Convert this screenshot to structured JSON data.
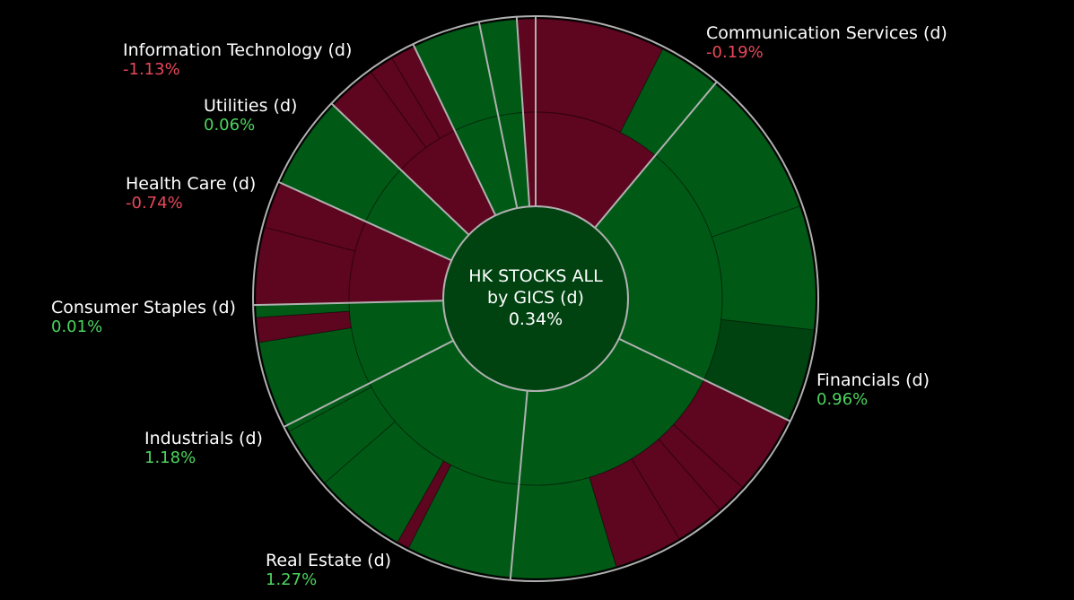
{
  "colors": {
    "background": "#000000",
    "positive_strong": "#005a16",
    "positive_dark": "#004311",
    "negative": "#5e0520",
    "positive_text": "#4cd45e",
    "negative_text": "#e8475a",
    "separator": "#b0b0b0"
  },
  "chart_data": {
    "type": "sunburst",
    "center": {
      "line1": "HK STOCKS ALL",
      "line2": "by GICS (d)",
      "value": "0.34%",
      "sign": 1
    },
    "sectors": [
      {
        "name": "Communication Services (d)",
        "change": "-0.19%",
        "sign": -1,
        "weight": 31,
        "segments": [
          {
            "weight": 21.0,
            "sign": -1
          },
          {
            "weight": 10.0,
            "sign": 1
          }
        ]
      },
      {
        "name": "Financials (d)",
        "change": "0.96%",
        "sign": 1,
        "weight": 59,
        "segments": [
          {
            "weight": 24.0,
            "sign": 1
          },
          {
            "weight": 20.0,
            "sign": 1
          },
          {
            "weight": 15.0,
            "sign": 1,
            "dark": true
          }
        ]
      },
      {
        "name": "Real Estate (d)",
        "change": "1.27%",
        "sign": 1,
        "weight": 54,
        "segments": [
          {
            "weight": 13.0,
            "sign": -1
          },
          {
            "weight": 5.0,
            "sign": -1
          },
          {
            "weight": 8.0,
            "sign": -1
          },
          {
            "weight": 11.0,
            "sign": -1
          },
          {
            "weight": 17.0,
            "sign": 1
          }
        ]
      },
      {
        "name": "Industrials (d)",
        "change": "1.18%",
        "sign": 1,
        "weight": 45,
        "segments": [
          {
            "weight": 17.0,
            "sign": 1
          },
          {
            "weight": 2.0,
            "sign": -1
          },
          {
            "weight": 15.0,
            "sign": 1
          },
          {
            "weight": 10.0,
            "sign": 1
          },
          {
            "weight": 1.0,
            "sign": 1
          }
        ]
      },
      {
        "name": "Consumer Staples (d)",
        "change": "0.01%",
        "sign": 1,
        "weight": 20,
        "segments": [
          {
            "weight": 14.0,
            "sign": 1
          },
          {
            "weight": 4.0,
            "sign": -1
          },
          {
            "weight": 2.0,
            "sign": 1
          }
        ]
      },
      {
        "name": "Health Care (d)",
        "change": "-0.74%",
        "sign": -1,
        "weight": 20,
        "segments": [
          {
            "weight": 12.5,
            "sign": -1
          },
          {
            "weight": 7.5,
            "sign": -1
          }
        ]
      },
      {
        "name": "Utilities (d)",
        "change": "0.06%",
        "sign": 1,
        "weight": 15,
        "segments": [
          {
            "weight": 15.0,
            "sign": 1
          }
        ]
      },
      {
        "name": "Information Technology (d)",
        "change": "-1.13%",
        "sign": -1,
        "weight": 16,
        "segments": [
          {
            "weight": 8.0,
            "sign": -1
          },
          {
            "weight": 4.0,
            "sign": -1
          },
          {
            "weight": 4.0,
            "sign": -1
          }
        ]
      },
      {
        "name": "",
        "change": "",
        "sign": 1,
        "weight": 11,
        "segments": [
          {
            "weight": 11.0,
            "sign": 1
          }
        ]
      },
      {
        "name": "",
        "change": "",
        "sign": 1,
        "weight": 6,
        "segments": [
          {
            "weight": 6.0,
            "sign": 1
          }
        ]
      },
      {
        "name": "",
        "change": "",
        "sign": -1,
        "weight": 3,
        "segments": [
          {
            "weight": 3.0,
            "sign": -1
          }
        ]
      }
    ]
  }
}
